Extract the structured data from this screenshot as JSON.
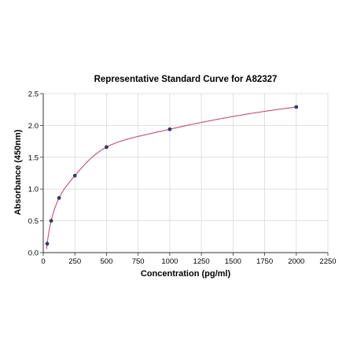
{
  "chart_data": {
    "type": "scatter",
    "title": "Representative Standard Curve for A82327",
    "xlabel": "Concentration (pg/ml)",
    "ylabel": "Absorbance (450nm)",
    "xlim": [
      0,
      2250
    ],
    "ylim": [
      0,
      2.5
    ],
    "x_ticks": [
      "0",
      "250",
      "500",
      "750",
      "1000",
      "1250",
      "1500",
      "1750",
      "2000",
      "2250"
    ],
    "y_ticks": [
      "0.0",
      "0.5",
      "1.0",
      "1.5",
      "2.0",
      "2.5"
    ],
    "grid": true,
    "series": [
      {
        "x": [
          31.25,
          62.5,
          125,
          250,
          500,
          1000,
          2000
        ],
        "y": [
          0.14,
          0.5,
          0.86,
          1.21,
          1.66,
          1.94,
          2.29
        ]
      }
    ],
    "fit_curve": true,
    "colors": {
      "points": "#2e3b6e",
      "curve": "#c0506e",
      "grid": "#d9d9d9",
      "axis": "#333333"
    }
  }
}
